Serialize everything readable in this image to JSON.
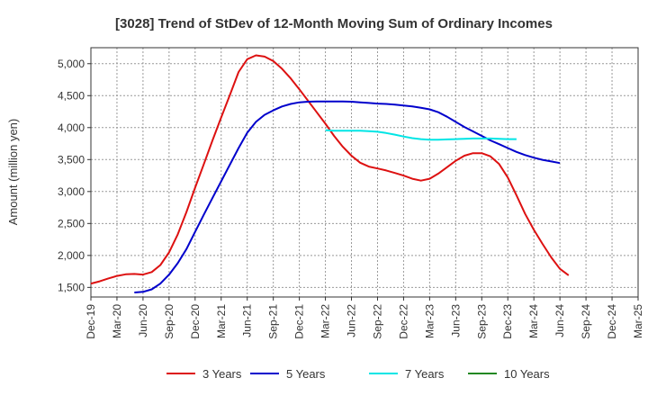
{
  "chart_data": {
    "type": "line",
    "title": "[3028]  Trend of StDev of 12-Month Moving Sum of Ordinary Incomes",
    "xlabel": "",
    "ylabel": "Amount (million yen)",
    "ylim": [
      1350,
      5250
    ],
    "yticks": [
      1500,
      2000,
      2500,
      3000,
      3500,
      4000,
      4500,
      5000
    ],
    "ytick_labels": [
      "1,500",
      "2,000",
      "2,500",
      "3,000",
      "3,500",
      "4,000",
      "4,500",
      "5,000"
    ],
    "x_tick_labels": [
      "Dec-19",
      "Mar-20",
      "Jun-20",
      "Sep-20",
      "Dec-20",
      "Mar-21",
      "Jun-21",
      "Sep-21",
      "Dec-21",
      "Mar-22",
      "Jun-22",
      "Sep-22",
      "Dec-22",
      "Mar-23",
      "Jun-23",
      "Sep-23",
      "Dec-23",
      "Mar-24",
      "Jun-24",
      "Sep-24",
      "Dec-24",
      "Mar-25"
    ],
    "grid": true,
    "legend_position": "bottom",
    "series": [
      {
        "name": "3 Years",
        "color": "#dd1111",
        "start_index": 0,
        "values": [
          1560,
          1595,
          1640,
          1680,
          1705,
          1710,
          1700,
          1740,
          1850,
          2050,
          2330,
          2680,
          3060,
          3430,
          3800,
          4160,
          4510,
          4870,
          5070,
          5130,
          5110,
          5040,
          4920,
          4770,
          4600,
          4420,
          4240,
          4060,
          3870,
          3700,
          3560,
          3450,
          3390,
          3360,
          3330,
          3290,
          3250,
          3200,
          3170,
          3200,
          3280,
          3380,
          3480,
          3560,
          3600,
          3600,
          3550,
          3430,
          3220,
          2940,
          2650,
          2400,
          2180,
          1970,
          1790,
          1690
        ]
      },
      {
        "name": "5 Years",
        "color": "#0000cc",
        "start_index": 5,
        "values": [
          1420,
          1430,
          1470,
          1560,
          1700,
          1880,
          2100,
          2370,
          2640,
          2900,
          3160,
          3420,
          3680,
          3920,
          4090,
          4200,
          4270,
          4330,
          4370,
          4395,
          4405,
          4410,
          4410,
          4410,
          4410,
          4405,
          4395,
          4385,
          4375,
          4370,
          4360,
          4345,
          4330,
          4310,
          4285,
          4240,
          4170,
          4090,
          4010,
          3940,
          3870,
          3800,
          3740,
          3680,
          3620,
          3570,
          3530,
          3495,
          3470,
          3445
        ]
      },
      {
        "name": "7 Years",
        "color": "#00e5e5",
        "start_index": 27,
        "values": [
          3960,
          3950,
          3950,
          3950,
          3950,
          3945,
          3935,
          3915,
          3890,
          3860,
          3835,
          3820,
          3810,
          3810,
          3815,
          3820,
          3825,
          3830,
          3830,
          3830,
          3825,
          3820,
          3820
        ]
      },
      {
        "name": "10 Years",
        "color": "#228822",
        "start_index": 0,
        "values": []
      }
    ]
  }
}
